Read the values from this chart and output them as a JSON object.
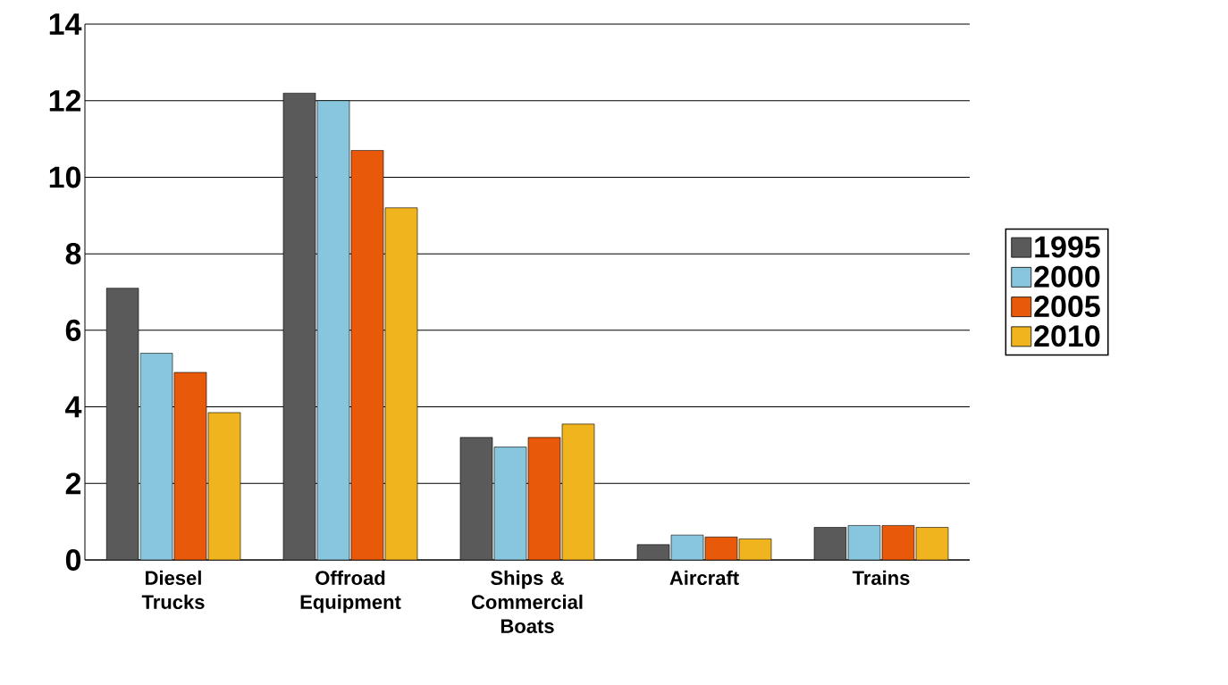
{
  "chart_data": {
    "type": "bar",
    "categories": [
      "Diesel Trucks",
      "Offroad Equipment",
      "Ships & Commercial Boats",
      "Aircraft",
      "Trains"
    ],
    "series": [
      {
        "name": "1995",
        "color": "#5a5a5a",
        "values": [
          7.1,
          12.2,
          3.2,
          0.4,
          0.85
        ]
      },
      {
        "name": "2000",
        "color": "#87c6dc",
        "values": [
          5.4,
          12.0,
          2.95,
          0.65,
          0.9
        ]
      },
      {
        "name": "2005",
        "color": "#e85a0a",
        "values": [
          4.9,
          10.7,
          3.2,
          0.6,
          0.9
        ]
      },
      {
        "name": "2010",
        "color": "#f0b41e",
        "values": [
          3.85,
          9.2,
          3.55,
          0.55,
          0.85
        ]
      }
    ],
    "ylim": [
      0,
      14
    ],
    "yticks": [
      0,
      2,
      4,
      6,
      8,
      10,
      12,
      14
    ],
    "grid": "y",
    "legend": "right"
  }
}
